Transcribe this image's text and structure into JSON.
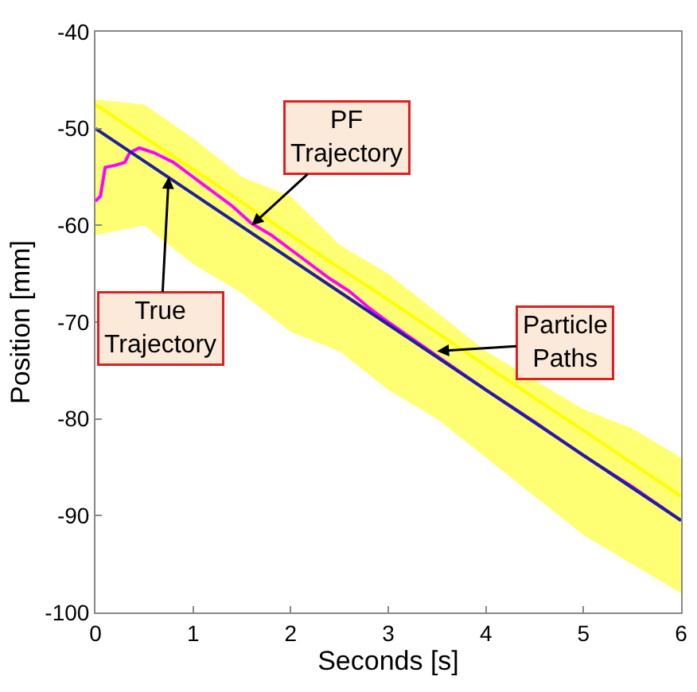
{
  "chart_data": {
    "type": "line",
    "xlabel": "Seconds [s]",
    "ylabel": "Position [mm]",
    "xlim": [
      0,
      6
    ],
    "ylim": [
      -100,
      -40
    ],
    "xticks": [
      0,
      1,
      2,
      3,
      4,
      5,
      6
    ],
    "yticks": [
      -100,
      -90,
      -80,
      -70,
      -60,
      -50,
      -40
    ],
    "marker": "none",
    "line_style": "solid",
    "series": [
      {
        "color": "#ffff00",
        "x": [
          0,
          0.5,
          1,
          1.5,
          2,
          2.5,
          3,
          3.5,
          4,
          5,
          5.5,
          6
        ],
        "values": [
          -47.5,
          -50.9,
          -54.2,
          -57.6,
          -61,
          -64.4,
          -67.7,
          -71.1,
          -74.5,
          -81.2,
          -84.6,
          -88
        ],
        "lower": [
          -61,
          -60,
          -64,
          -67,
          -71,
          -73,
          -77,
          -80,
          -84,
          -92,
          -95,
          -98
        ],
        "upper": [
          -47,
          -47.5,
          -51,
          -55,
          -57,
          -62,
          -65,
          -69,
          -73,
          -79,
          -81,
          -84
        ]
      },
      {
        "color": "#ff00ff",
        "x": [
          0,
          0.05,
          0.1,
          0.2,
          0.3,
          0.35,
          0.45,
          0.6,
          0.8,
          1.0,
          1.2,
          1.4,
          1.6,
          1.8,
          2.0,
          2.2,
          2.4,
          2.6,
          2.8,
          3.0,
          3.5,
          4.0,
          4.5,
          5.0,
          5.5,
          6.0
        ],
        "values": [
          -57.5,
          -57,
          -54,
          -53.8,
          -53.5,
          -52.5,
          -52,
          -52.5,
          -53.5,
          -55,
          -56.5,
          -58,
          -59.8,
          -61,
          -62.5,
          -64,
          -65.5,
          -66.8,
          -68.5,
          -70,
          -73.5,
          -77,
          -80.3,
          -83.8,
          -87,
          -90.5
        ]
      },
      {
        "color": "#1f1fa0",
        "x": [
          0,
          6
        ],
        "values": [
          -50,
          -90.5
        ]
      }
    ],
    "annotations": [
      {
        "text": "PF\nTrajectory",
        "x": 1.6,
        "y": -60
      },
      {
        "text": "True\nTrajectory",
        "x": 0.75,
        "y": -55
      },
      {
        "text": "Particle\nPaths",
        "x": 3.5,
        "y": -73
      }
    ]
  }
}
